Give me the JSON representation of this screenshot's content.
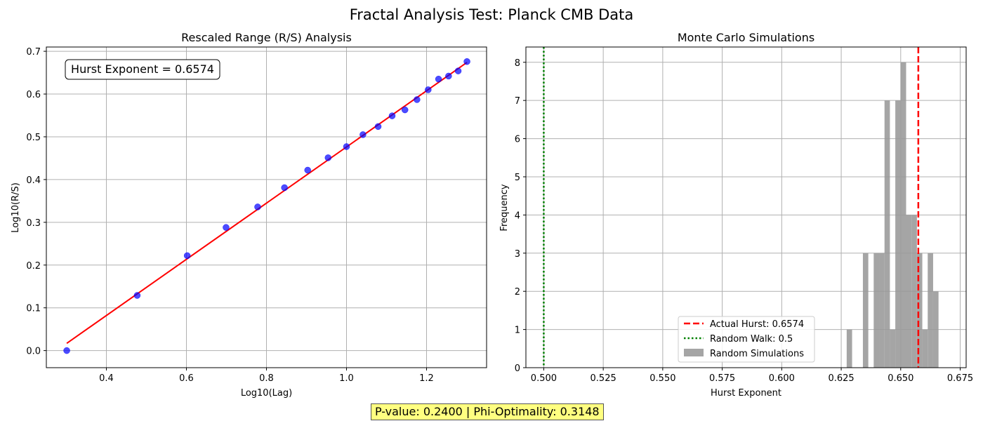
{
  "figure": {
    "suptitle": "Fractal Analysis Test: Planck CMB Data"
  },
  "footer": {
    "text": "P-value: 0.2400 | Phi-Optimality: 0.3148"
  },
  "colors": {
    "points": "#0000ff",
    "fit_line": "#ff0000",
    "actual_hurst_line": "#ff0000",
    "random_walk_line": "#008000",
    "histogram": "#999999",
    "grid": "#b0b0b0",
    "footer_bg": "#ffff80"
  },
  "chart_data": [
    {
      "type": "scatter",
      "title": "Rescaled Range (R/S) Analysis",
      "xlabel": "Log10(Lag)",
      "ylabel": "Log10(R/S)",
      "xlim": [
        0.25,
        1.35
      ],
      "ylim": [
        -0.04,
        0.71
      ],
      "xticks": [
        0.4,
        0.6,
        0.8,
        1.0,
        1.2
      ],
      "xtick_labels": [
        "0.4",
        "0.6",
        "0.8",
        "1.0",
        "1.2"
      ],
      "yticks": [
        0.0,
        0.1,
        0.2,
        0.3,
        0.4,
        0.5,
        0.6,
        0.7
      ],
      "ytick_labels": [
        "0.0",
        "0.1",
        "0.2",
        "0.3",
        "0.4",
        "0.5",
        "0.6",
        "0.7"
      ],
      "grid": true,
      "annotation": "Hurst Exponent = 0.6574",
      "series": [
        {
          "x": [
            0.301,
            0.477,
            0.602,
            0.699,
            0.778,
            0.845,
            0.903,
            0.954,
            1.0,
            1.041,
            1.079,
            1.114,
            1.146,
            1.176,
            1.204,
            1.23,
            1.255,
            1.279,
            1.301
          ],
          "y": [
            0.0,
            0.129,
            0.222,
            0.288,
            0.336,
            0.381,
            0.422,
            0.451,
            0.477,
            0.505,
            0.524,
            0.549,
            0.563,
            0.587,
            0.61,
            0.635,
            0.642,
            0.654,
            0.676
          ]
        }
      ],
      "fit_line": {
        "x": [
          0.301,
          1.301
        ],
        "y": [
          0.017,
          0.674
        ]
      }
    },
    {
      "type": "bar",
      "title": "Monte Carlo Simulations",
      "xlabel": "Hurst Exponent",
      "ylabel": "Frequency",
      "xlim": [
        0.4925,
        0.6775
      ],
      "ylim": [
        0,
        8.4
      ],
      "xticks": [
        0.5,
        0.525,
        0.55,
        0.575,
        0.6,
        0.625,
        0.65,
        0.675
      ],
      "xtick_labels": [
        "0.500",
        "0.525",
        "0.550",
        "0.575",
        "0.600",
        "0.625",
        "0.650",
        "0.675"
      ],
      "yticks": [
        0,
        1,
        2,
        3,
        4,
        5,
        6,
        7,
        8
      ],
      "ytick_labels": [
        "0",
        "1",
        "2",
        "3",
        "4",
        "5",
        "6",
        "7",
        "8"
      ],
      "grid": true,
      "histogram": {
        "name": "Random Simulations",
        "bin_start": 0.6273,
        "bin_width": 0.00227,
        "counts": [
          1,
          0,
          0,
          3,
          0,
          3,
          3,
          7,
          1,
          7,
          8,
          4,
          4,
          3,
          1,
          3,
          2
        ]
      },
      "vlines": [
        {
          "name": "Actual Hurst: 0.6574",
          "x": 0.6574,
          "style": "dashed"
        },
        {
          "name": "Random Walk: 0.5",
          "x": 0.5,
          "style": "dotted"
        }
      ],
      "legend_position": "lower-center"
    }
  ]
}
